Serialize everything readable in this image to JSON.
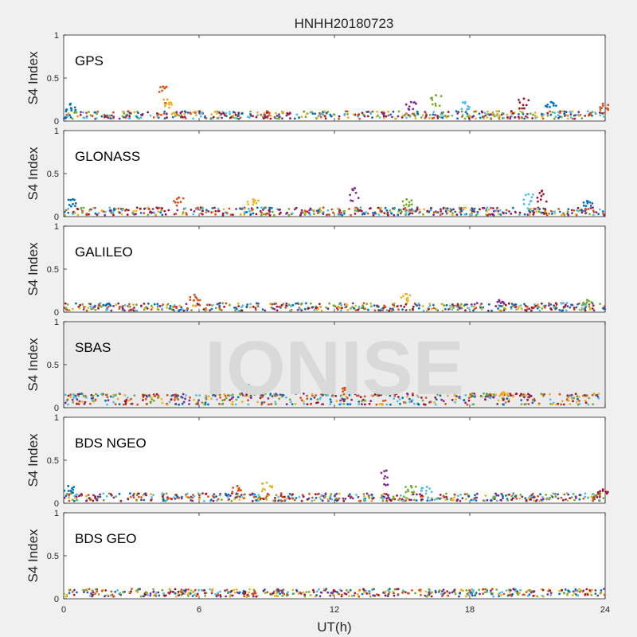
{
  "title": "HNHH20180723",
  "watermark": "IONISE",
  "xlabel": "UT(h)",
  "x_ticks": [
    "0",
    "6",
    "12",
    "18",
    "24"
  ],
  "colors": [
    "#0072BD",
    "#D95319",
    "#EDB120",
    "#7E2F8E",
    "#77AC30",
    "#4DBEEE",
    "#A2142F"
  ],
  "chart_data": [
    {
      "type": "scatter",
      "title": "GPS",
      "xlabel": "UT(h)",
      "ylabel": "S4 Index",
      "xlim": [
        0,
        24
      ],
      "ylim": [
        0,
        1
      ],
      "y_ticks": [
        "0",
        "0.5",
        "1"
      ],
      "grid": false,
      "series_baseline": 0.07,
      "spikes": [
        {
          "x": 0.3,
          "y": 0.2
        },
        {
          "x": 4.4,
          "y": 0.4
        },
        {
          "x": 4.6,
          "y": 0.25
        },
        {
          "x": 15.4,
          "y": 0.22
        },
        {
          "x": 16.5,
          "y": 0.3
        },
        {
          "x": 17.8,
          "y": 0.22
        },
        {
          "x": 20.4,
          "y": 0.26
        },
        {
          "x": 21.6,
          "y": 0.22
        },
        {
          "x": 23.9,
          "y": 0.2
        }
      ]
    },
    {
      "type": "scatter",
      "title": "GLONASS",
      "xlabel": "UT(h)",
      "ylabel": "S4 Index",
      "xlim": [
        0,
        24
      ],
      "ylim": [
        0,
        1
      ],
      "y_ticks": [
        "0",
        "0.5",
        "1"
      ],
      "grid": false,
      "series_baseline": 0.06,
      "spikes": [
        {
          "x": 0.4,
          "y": 0.2
        },
        {
          "x": 5.1,
          "y": 0.22
        },
        {
          "x": 8.4,
          "y": 0.2
        },
        {
          "x": 12.9,
          "y": 0.33
        },
        {
          "x": 15.2,
          "y": 0.2
        },
        {
          "x": 20.6,
          "y": 0.26
        },
        {
          "x": 21.2,
          "y": 0.3
        },
        {
          "x": 23.2,
          "y": 0.18
        }
      ]
    },
    {
      "type": "scatter",
      "title": "GALILEO",
      "xlabel": "UT(h)",
      "ylabel": "S4 Index",
      "xlim": [
        0,
        24
      ],
      "ylim": [
        0,
        1
      ],
      "y_ticks": [
        "0",
        "0.5",
        "1"
      ],
      "grid": false,
      "series_baseline": 0.06,
      "spikes": [
        {
          "x": 2.0,
          "y": 0.1
        },
        {
          "x": 5.8,
          "y": 0.2
        },
        {
          "x": 15.2,
          "y": 0.21
        },
        {
          "x": 19.3,
          "y": 0.14
        },
        {
          "x": 23.2,
          "y": 0.14
        }
      ]
    },
    {
      "type": "scatter",
      "title": "SBAS",
      "xlabel": "UT(h)",
      "ylabel": "S4 Index",
      "xlim": [
        0,
        24
      ],
      "ylim": [
        0,
        1
      ],
      "y_ticks": [
        "0",
        "0.5",
        "1"
      ],
      "grid": false,
      "series_baseline": 0.1,
      "spikes": [
        {
          "x": 8.2,
          "y": 0.26
        },
        {
          "x": 12.6,
          "y": 0.23
        },
        {
          "x": 19.5,
          "y": 0.18
        }
      ]
    },
    {
      "type": "scatter",
      "title": "BDS NGEO",
      "xlabel": "UT(h)",
      "ylabel": "S4 Index",
      "xlim": [
        0,
        24
      ],
      "ylim": [
        0,
        1
      ],
      "y_ticks": [
        "0",
        "0.5",
        "1"
      ],
      "grid": false,
      "series_baseline": 0.07,
      "spikes": [
        {
          "x": 0.2,
          "y": 0.2
        },
        {
          "x": 7.7,
          "y": 0.2
        },
        {
          "x": 9.0,
          "y": 0.24
        },
        {
          "x": 14.3,
          "y": 0.38
        },
        {
          "x": 15.4,
          "y": 0.2
        },
        {
          "x": 16.1,
          "y": 0.19
        },
        {
          "x": 23.9,
          "y": 0.16
        }
      ]
    },
    {
      "type": "scatter",
      "title": "BDS GEO",
      "xlabel": "UT(h)",
      "ylabel": "S4 Index",
      "xlim": [
        0,
        24
      ],
      "ylim": [
        0,
        1
      ],
      "y_ticks": [
        "0",
        "0.5",
        "1"
      ],
      "grid": false,
      "series_baseline": 0.07,
      "spikes": []
    }
  ]
}
